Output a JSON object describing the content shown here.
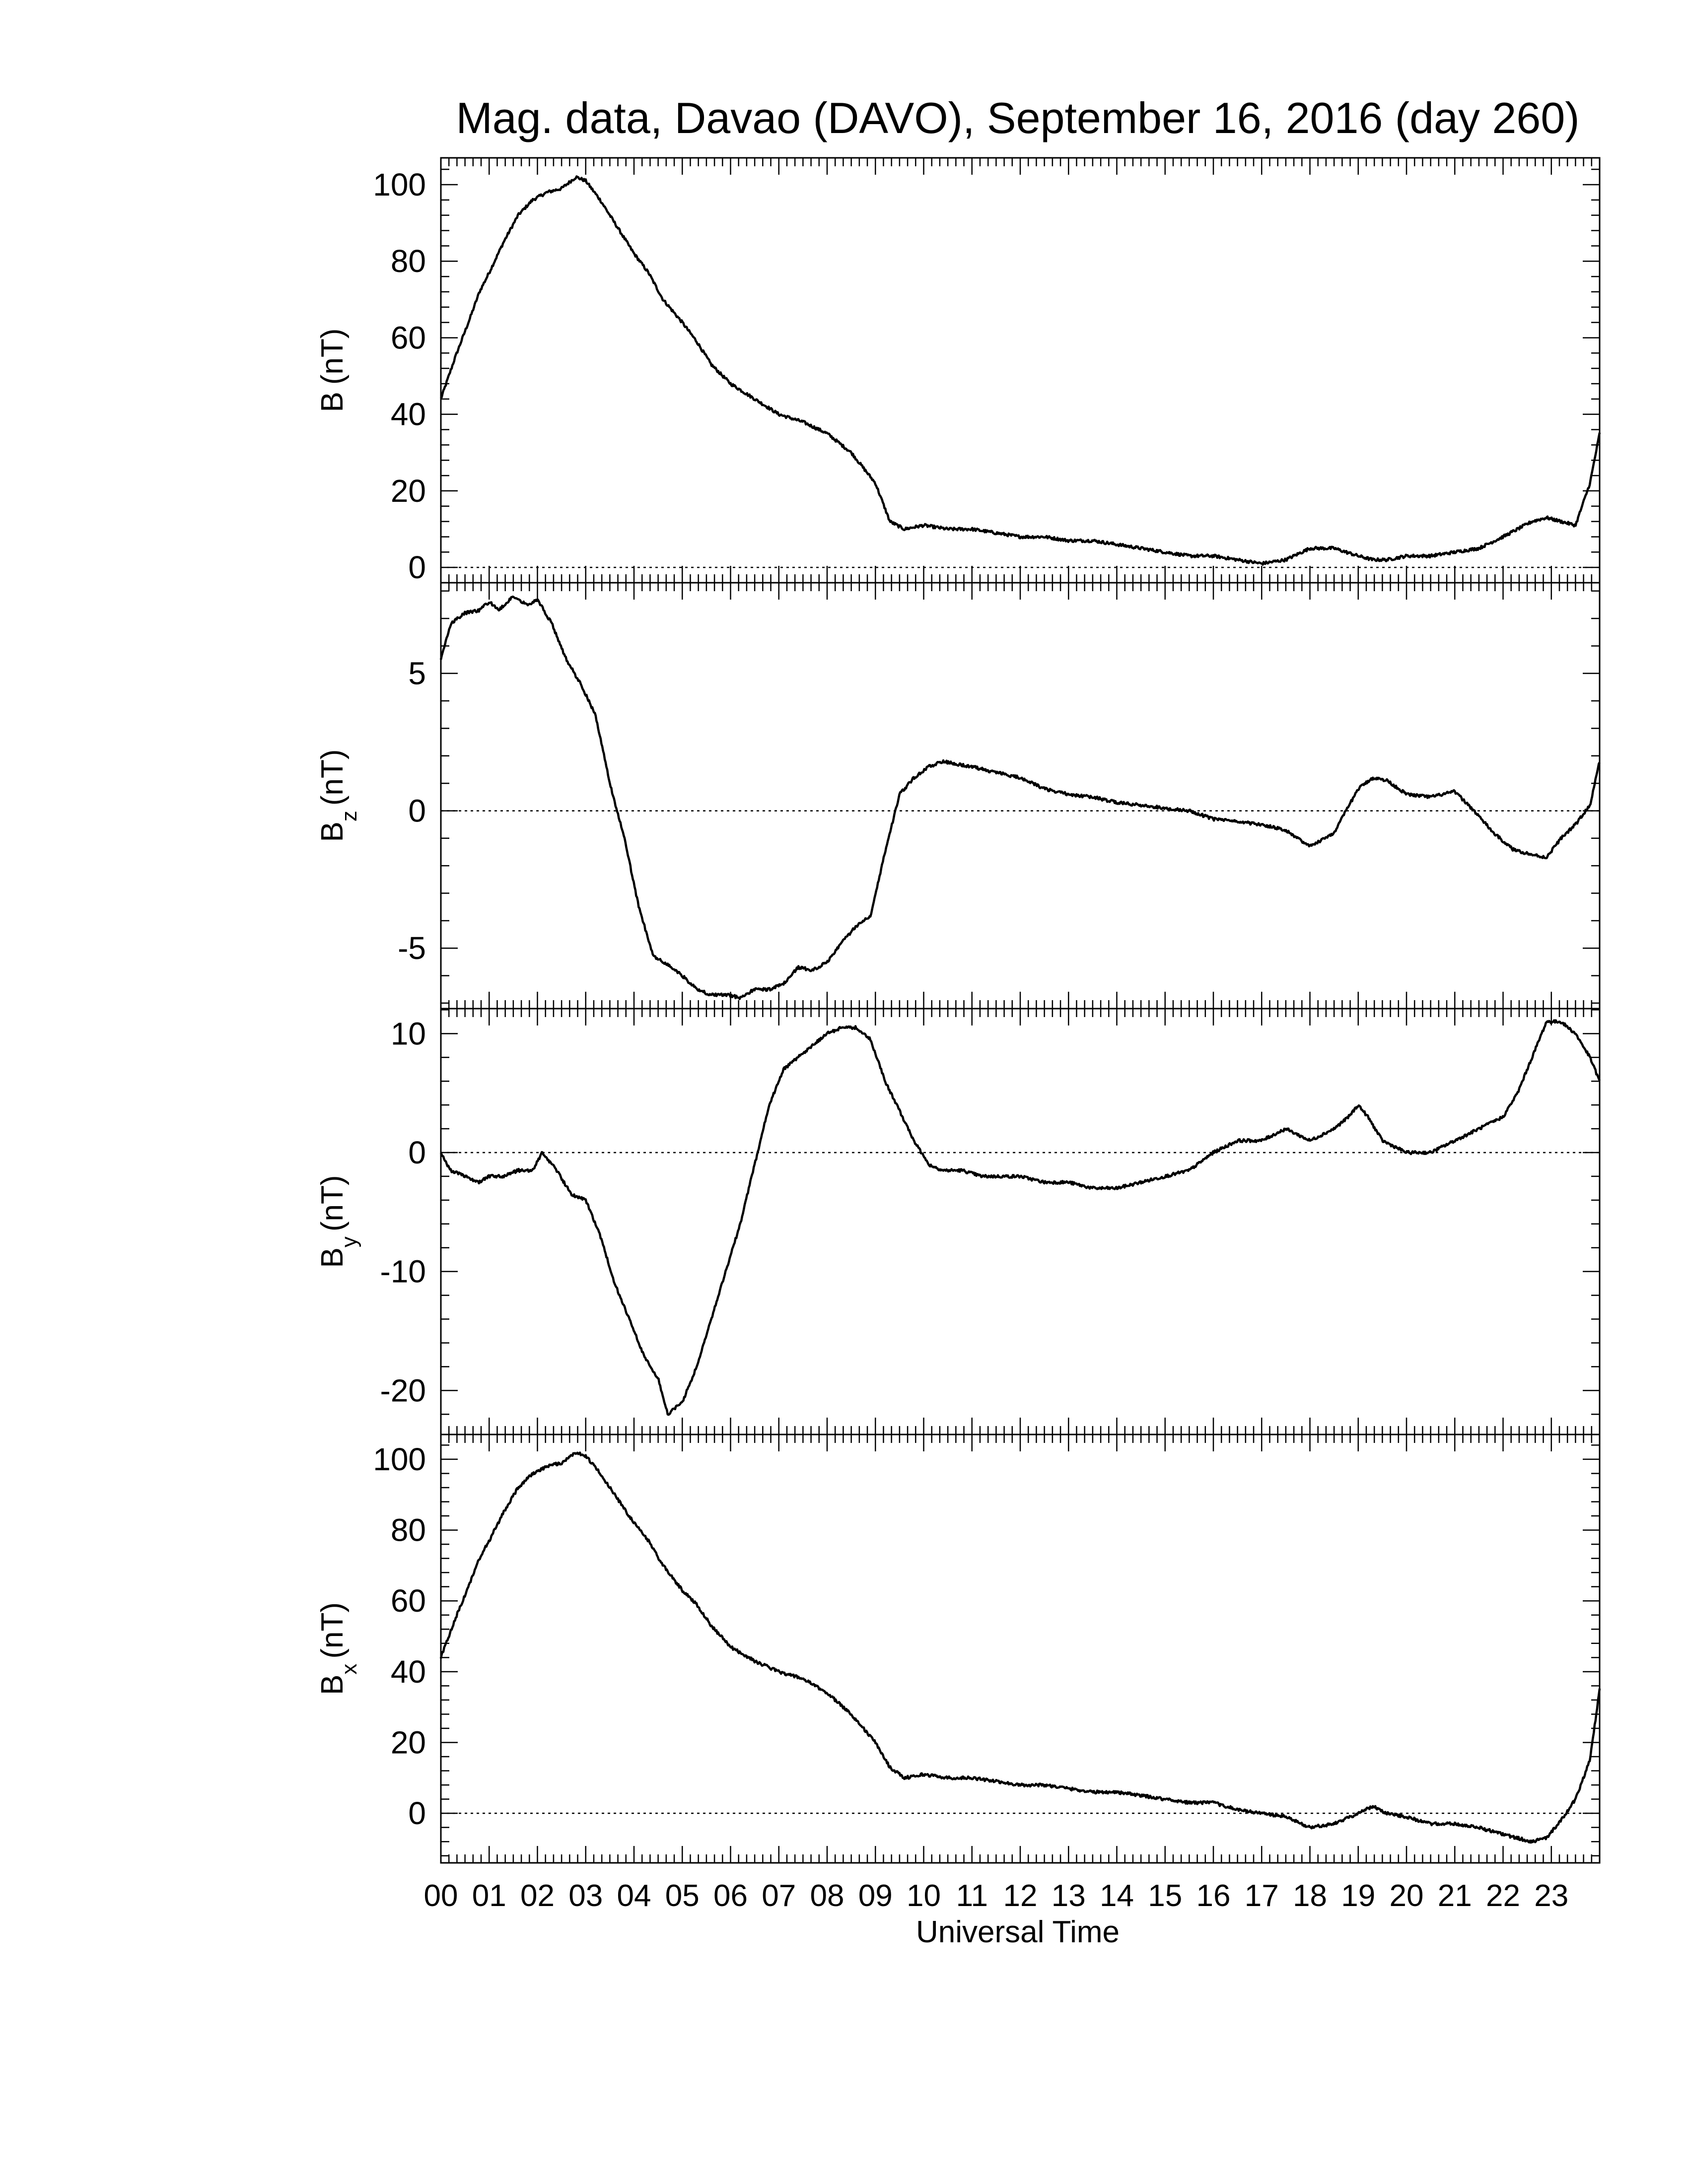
{
  "title": "Mag. data, Davao (DAVO), September 16, 2016 (day 260)",
  "xlabel": "Universal Time",
  "x_tick_labels": [
    "00",
    "01",
    "02",
    "03",
    "04",
    "05",
    "06",
    "07",
    "08",
    "09",
    "10",
    "11",
    "12",
    "13",
    "14",
    "15",
    "16",
    "17",
    "18",
    "19",
    "20",
    "21",
    "22",
    "23"
  ],
  "chart_data": [
    {
      "type": "line",
      "panel": "B",
      "ylabel_main": "B",
      "ylabel_sub": "",
      "ylabel_unit": "(nT)",
      "xlim": [
        0,
        24
      ],
      "ylim": [
        -4,
        107
      ],
      "yticks": [
        0,
        20,
        40,
        60,
        80,
        100
      ],
      "zero_line": true,
      "series": [
        {
          "x": [
            0,
            0.3,
            0.6,
            0.8,
            1.0,
            1.3,
            1.6,
            1.9,
            2.2,
            2.5,
            2.8,
            3.0,
            3.3,
            3.6,
            4.0,
            4.3,
            4.6,
            5.0,
            5.3,
            5.6,
            6.0,
            6.5,
            7.0,
            7.5,
            8.0,
            8.5,
            9.0,
            9.3,
            9.6,
            10.0,
            10.5,
            11.0,
            11.5,
            12.0,
            12.5,
            13.0,
            13.5,
            14.0,
            14.5,
            15.0,
            15.5,
            16.0,
            16.5,
            17.0,
            17.5,
            18.0,
            18.5,
            19.0,
            19.3,
            19.6,
            20.0,
            20.5,
            21.0,
            21.5,
            22.0,
            22.3,
            22.6,
            22.9,
            23.2,
            23.5,
            23.8,
            24.0
          ],
          "y": [
            44,
            55,
            65,
            72,
            77,
            85,
            92,
            96,
            98,
            99,
            102,
            101,
            96,
            90,
            82,
            77,
            70,
            64,
            59,
            53,
            48,
            44,
            40,
            38,
            35,
            30,
            22,
            12,
            10,
            11,
            10,
            10,
            9,
            8,
            8,
            7,
            7,
            6,
            5,
            4,
            3,
            3,
            2,
            1,
            2,
            5,
            5,
            3,
            2,
            2,
            3,
            3,
            4,
            5,
            8,
            10,
            12,
            13,
            12,
            11,
            22,
            35
          ]
        }
      ]
    },
    {
      "type": "line",
      "panel": "Bz",
      "ylabel_main": "B",
      "ylabel_sub": "z",
      "ylabel_unit": "(nT)",
      "xlim": [
        0,
        24
      ],
      "ylim": [
        -7.2,
        8.3
      ],
      "yticks": [
        -5,
        0,
        5
      ],
      "zero_line": true,
      "series": [
        {
          "x": [
            0,
            0.2,
            0.5,
            0.8,
            1.0,
            1.2,
            1.5,
            1.8,
            2.0,
            2.3,
            2.6,
            2.9,
            3.2,
            3.5,
            3.8,
            4.1,
            4.4,
            4.7,
            5.0,
            5.3,
            5.6,
            5.9,
            6.2,
            6.5,
            6.8,
            7.1,
            7.4,
            7.7,
            8.0,
            8.3,
            8.6,
            8.9,
            9.2,
            9.5,
            9.8,
            10.1,
            10.4,
            10.7,
            11.0,
            11.5,
            12.0,
            12.5,
            13.0,
            13.5,
            14.0,
            14.5,
            15.0,
            15.5,
            16.0,
            16.5,
            17.0,
            17.5,
            18.0,
            18.5,
            19.0,
            19.3,
            19.6,
            20.0,
            20.5,
            21.0,
            21.4,
            21.8,
            22.2,
            22.6,
            22.9,
            23.2,
            23.5,
            23.8,
            24.0
          ],
          "y": [
            5.5,
            6.8,
            7.2,
            7.3,
            7.6,
            7.3,
            7.8,
            7.5,
            7.7,
            6.8,
            5.5,
            4.6,
            3.5,
            1.0,
            -1.0,
            -3.5,
            -5.3,
            -5.6,
            -6.0,
            -6.5,
            -6.7,
            -6.7,
            -6.8,
            -6.5,
            -6.5,
            -6.3,
            -5.7,
            -5.8,
            -5.5,
            -4.8,
            -4.2,
            -3.8,
            -1.5,
            0.6,
            1.2,
            1.6,
            1.8,
            1.7,
            1.6,
            1.4,
            1.2,
            0.8,
            0.6,
            0.5,
            0.3,
            0.2,
            0.1,
            0,
            -0.3,
            -0.4,
            -0.5,
            -0.7,
            -1.3,
            -0.8,
            0.8,
            1.2,
            1.1,
            0.6,
            0.5,
            0.7,
            0,
            -0.8,
            -1.4,
            -1.6,
            -1.7,
            -1.0,
            -0.5,
            0.2,
            1.8
          ]
        }
      ]
    },
    {
      "type": "line",
      "panel": "By",
      "ylabel_main": "B",
      "ylabel_sub": "y",
      "ylabel_unit": "(nT)",
      "xlim": [
        0,
        24
      ],
      "ylim": [
        -23.7,
        12.1
      ],
      "yticks": [
        -20,
        -10,
        0,
        10
      ],
      "zero_line": true,
      "series": [
        {
          "x": [
            0,
            0.2,
            0.5,
            0.8,
            1.0,
            1.3,
            1.6,
            1.9,
            2.1,
            2.4,
            2.7,
            3.0,
            3.3,
            3.6,
            3.9,
            4.2,
            4.5,
            4.7,
            5.0,
            5.3,
            5.6,
            5.9,
            6.2,
            6.5,
            6.8,
            7.1,
            7.4,
            7.7,
            8.0,
            8.3,
            8.6,
            8.9,
            9.2,
            9.5,
            9.8,
            10.1,
            10.4,
            10.8,
            11.2,
            11.6,
            12.0,
            12.5,
            13.0,
            13.5,
            14.0,
            14.5,
            15.0,
            15.5,
            16.0,
            16.5,
            17.0,
            17.5,
            18.0,
            18.5,
            18.8,
            19.0,
            19.2,
            19.5,
            20.0,
            20.5,
            21.0,
            21.5,
            22.0,
            22.3,
            22.6,
            22.9,
            23.2,
            23.5,
            23.8,
            24.0
          ],
          "y": [
            0,
            -1.5,
            -2,
            -2.5,
            -2,
            -2,
            -1.5,
            -1.5,
            0,
            -1.5,
            -3.5,
            -4,
            -7,
            -11,
            -14,
            -17,
            -19,
            -22,
            -21,
            -18,
            -14,
            -10,
            -6,
            -1,
            4,
            7,
            8,
            9,
            10,
            10.5,
            10.5,
            9.5,
            6,
            3.5,
            1,
            -1,
            -1.5,
            -1.5,
            -2,
            -2,
            -2,
            -2.5,
            -2.5,
            -3,
            -3,
            -2.5,
            -2,
            -1.5,
            0,
            1,
            1,
            2,
            1,
            2,
            3,
            4,
            3,
            1,
            0,
            0,
            1,
            2,
            3,
            5,
            8,
            11,
            11,
            10,
            8,
            6
          ]
        }
      ]
    },
    {
      "type": "line",
      "panel": "Bx",
      "ylabel_main": "B",
      "ylabel_sub": "x",
      "ylabel_unit": "(nT)",
      "xlim": [
        0,
        24
      ],
      "ylim": [
        -14,
        107
      ],
      "yticks": [
        0,
        20,
        40,
        60,
        80,
        100
      ],
      "zero_line": true,
      "series": [
        {
          "x": [
            0,
            0.3,
            0.6,
            0.8,
            1.0,
            1.3,
            1.6,
            1.9,
            2.2,
            2.5,
            2.8,
            3.0,
            3.3,
            3.6,
            4.0,
            4.3,
            4.6,
            5.0,
            5.3,
            5.6,
            6.0,
            6.5,
            7.0,
            7.5,
            8.0,
            8.5,
            9.0,
            9.3,
            9.6,
            10.0,
            10.5,
            11.0,
            11.5,
            12.0,
            12.5,
            13.0,
            13.5,
            14.0,
            14.5,
            15.0,
            15.5,
            16.0,
            16.5,
            17.0,
            17.5,
            18.0,
            18.5,
            19.0,
            19.3,
            19.6,
            20.0,
            20.5,
            21.0,
            21.5,
            22.0,
            22.3,
            22.6,
            22.9,
            23.2,
            23.5,
            23.8,
            24.0
          ],
          "y": [
            44,
            55,
            65,
            72,
            77,
            85,
            92,
            96,
            98,
            99,
            102,
            101,
            96,
            90,
            82,
            77,
            70,
            63,
            59,
            53,
            47,
            43,
            40,
            38,
            34,
            28,
            20,
            13,
            10,
            11,
            10,
            10,
            9,
            8,
            8,
            7,
            6,
            6,
            5,
            4,
            3,
            3,
            1,
            0,
            -1,
            -4,
            -3,
            0,
            2,
            0,
            -1,
            -3,
            -3,
            -4,
            -6,
            -7,
            -8,
            -7,
            -2,
            4,
            15,
            35
          ]
        }
      ]
    }
  ]
}
